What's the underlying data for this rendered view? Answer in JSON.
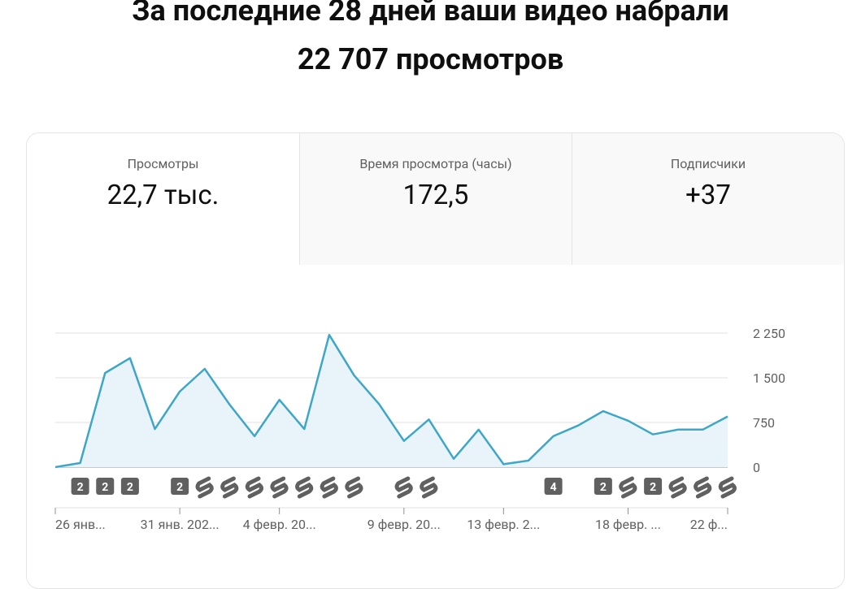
{
  "header": {
    "title_line1": "За последние 28 дней ваши видео набрали",
    "title_line2": "22 707 просмотров"
  },
  "tabs": [
    {
      "label": "Просмотры",
      "value": "22,7 тыс."
    },
    {
      "label": "Время просмотра (часы)",
      "value": "172,5"
    },
    {
      "label": "Подписчики",
      "value": "+37"
    }
  ],
  "chart_data": {
    "type": "line",
    "categories": [
      "26 янв...",
      null,
      null,
      null,
      null,
      "31 янв. 202...",
      null,
      null,
      null,
      "4 февр. 20...",
      null,
      null,
      null,
      null,
      "9 февр. 20...",
      null,
      null,
      null,
      "13 февр. 2...",
      null,
      null,
      null,
      null,
      "18 февр. ...",
      null,
      null,
      null,
      "22 ф..."
    ],
    "series": [
      {
        "name": "Просмотры",
        "color": "#3ea6c8",
        "values": [
          0,
          70,
          1580,
          1830,
          640,
          1270,
          1650,
          1050,
          520,
          1130,
          640,
          2220,
          1540,
          1060,
          440,
          800,
          140,
          630,
          50,
          110,
          520,
          700,
          940,
          780,
          550,
          630,
          630,
          850
        ]
      }
    ],
    "ylim": [
      0,
      2250
    ],
    "yticks": [
      0,
      750,
      {
        "value": 1500,
        "label": "1 500"
      },
      {
        "value": 2250,
        "label": "2 250"
      }
    ],
    "grid": true,
    "area_fill": "#e9f4fa",
    "badges": [
      null,
      "2",
      "2",
      "2",
      null,
      "2",
      null,
      null,
      null,
      null,
      null,
      null,
      null,
      null,
      null,
      null,
      null,
      null,
      null,
      null,
      "4",
      null,
      "2",
      null,
      "2",
      null,
      null,
      null
    ],
    "shorts": [
      false,
      false,
      false,
      false,
      false,
      false,
      true,
      true,
      true,
      true,
      true,
      true,
      true,
      false,
      true,
      true,
      false,
      false,
      false,
      false,
      false,
      false,
      false,
      true,
      false,
      true,
      true,
      true
    ]
  }
}
